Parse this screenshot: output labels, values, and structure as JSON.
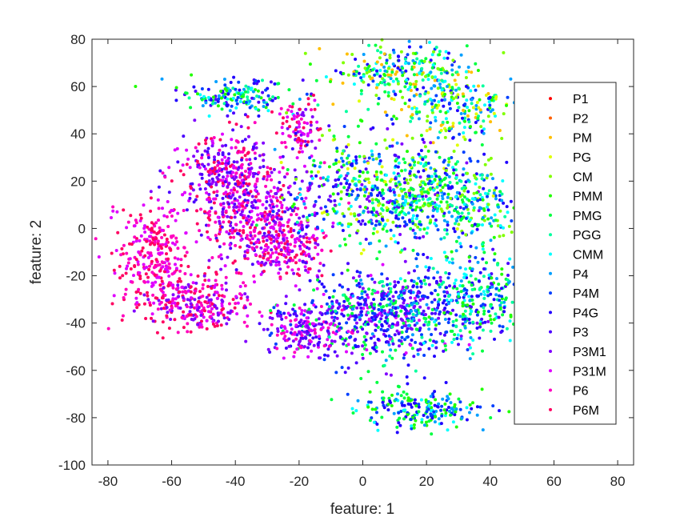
{
  "chart_data": {
    "type": "scatter",
    "title": "",
    "xlabel": "feature: 1",
    "ylabel": "feature: 2",
    "xlim": [
      -85,
      85
    ],
    "ylim": [
      -100,
      80
    ],
    "xticks": [
      -80,
      -60,
      -40,
      -20,
      0,
      20,
      40,
      60,
      80
    ],
    "yticks": [
      -100,
      -80,
      -60,
      -40,
      -20,
      0,
      20,
      40,
      60,
      80
    ],
    "grid": false,
    "legend_position": "right",
    "series": [
      {
        "name": "P1",
        "color": "#ff0000"
      },
      {
        "name": "P2",
        "color": "#ff5f00"
      },
      {
        "name": "PM",
        "color": "#ffbf00"
      },
      {
        "name": "PG",
        "color": "#dfff00"
      },
      {
        "name": "CM",
        "color": "#80ff00"
      },
      {
        "name": "PMM",
        "color": "#20ff00"
      },
      {
        "name": "PMG",
        "color": "#00ff40"
      },
      {
        "name": "PGG",
        "color": "#00ff9f"
      },
      {
        "name": "CMM",
        "color": "#00ffff"
      },
      {
        "name": "P4",
        "color": "#009fff"
      },
      {
        "name": "P4M",
        "color": "#0040ff"
      },
      {
        "name": "P4G",
        "color": "#2000ff"
      },
      {
        "name": "P3",
        "color": "#4a00ff"
      },
      {
        "name": "P3M1",
        "color": "#8000ff"
      },
      {
        "name": "P31M",
        "color": "#df00ff"
      },
      {
        "name": "P6",
        "color": "#ff00bf"
      },
      {
        "name": "P6M",
        "color": "#ff0060"
      }
    ],
    "clusters": [
      {
        "center": [
          -40,
          56
        ],
        "spread": [
          9,
          3.5
        ],
        "count": 170,
        "series": [
          9,
          10,
          11,
          12,
          5,
          6,
          7,
          8
        ]
      },
      {
        "center": [
          12,
          67
        ],
        "spread": [
          10,
          5
        ],
        "count": 220,
        "series": [
          5,
          6,
          7,
          8,
          9,
          10,
          11,
          4,
          2
        ]
      },
      {
        "center": [
          28,
          52
        ],
        "spread": [
          10,
          8
        ],
        "count": 260,
        "series": [
          2,
          3,
          4,
          5,
          6,
          7,
          8,
          9,
          10,
          11
        ]
      },
      {
        "center": [
          -20,
          42
        ],
        "spread": [
          3.5,
          6
        ],
        "count": 90,
        "series": [
          14,
          15,
          16,
          13
        ]
      },
      {
        "center": [
          -43,
          24
        ],
        "spread": [
          8,
          8
        ],
        "count": 300,
        "series": [
          14,
          15,
          16,
          13,
          12
        ]
      },
      {
        "center": [
          -35,
          5
        ],
        "spread": [
          9,
          10
        ],
        "count": 360,
        "series": [
          14,
          15,
          16,
          13,
          12
        ]
      },
      {
        "center": [
          -25,
          -8
        ],
        "spread": [
          7,
          7
        ],
        "count": 220,
        "series": [
          15,
          16,
          14,
          13
        ]
      },
      {
        "center": [
          -66,
          -12
        ],
        "spread": [
          6,
          10
        ],
        "count": 280,
        "series": [
          16,
          15,
          14
        ]
      },
      {
        "center": [
          -52,
          -32
        ],
        "spread": [
          9,
          6
        ],
        "count": 280,
        "series": [
          16,
          15,
          14,
          13
        ]
      },
      {
        "center": [
          5,
          15
        ],
        "spread": [
          14,
          12
        ],
        "count": 560,
        "series": [
          5,
          6,
          7,
          8,
          9,
          10,
          11,
          12,
          4,
          13,
          3
        ]
      },
      {
        "center": [
          28,
          12
        ],
        "spread": [
          12,
          9
        ],
        "count": 360,
        "series": [
          5,
          6,
          7,
          8,
          9,
          10,
          11,
          4
        ]
      },
      {
        "center": [
          -3,
          -37
        ],
        "spread": [
          12,
          9
        ],
        "count": 380,
        "series": [
          12,
          13,
          14,
          11,
          10,
          6
        ]
      },
      {
        "center": [
          15,
          -35
        ],
        "spread": [
          10,
          10
        ],
        "count": 320,
        "series": [
          9,
          10,
          11,
          12,
          6,
          7,
          13
        ]
      },
      {
        "center": [
          37,
          -30
        ],
        "spread": [
          10,
          10
        ],
        "count": 320,
        "series": [
          5,
          6,
          7,
          8,
          9,
          10,
          11,
          12
        ]
      },
      {
        "center": [
          -18,
          -43
        ],
        "spread": [
          6,
          5
        ],
        "count": 140,
        "series": [
          13,
          14,
          15,
          12
        ]
      },
      {
        "center": [
          18,
          -76
        ],
        "spread": [
          10,
          4
        ],
        "count": 210,
        "series": [
          9,
          10,
          11,
          8,
          5,
          6
        ]
      }
    ]
  }
}
